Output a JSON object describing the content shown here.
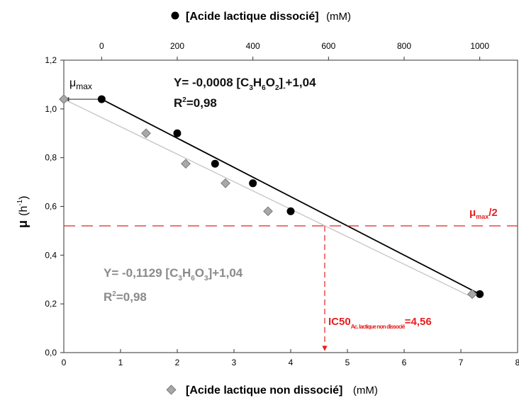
{
  "chart_data": {
    "type": "scatter",
    "x_bottom": {
      "label_prefix": "[Acide lactique non dissocié]",
      "unit": "(mM)",
      "range": [
        0,
        8
      ],
      "ticks": [
        0,
        1,
        2,
        3,
        4,
        5,
        6,
        7,
        8
      ],
      "tick_labels": [
        "0",
        "1",
        "2",
        "3",
        "4",
        "5",
        "6",
        "7",
        "8"
      ]
    },
    "x_top": {
      "label_prefix": "[Acide lactique dissocié]",
      "unit": "(mM)",
      "range": [
        -100,
        1100
      ],
      "ticks": [
        0,
        200,
        400,
        600,
        800,
        1000
      ],
      "tick_labels": [
        "0",
        "200",
        "400",
        "600",
        "800",
        "1000"
      ]
    },
    "y": {
      "label_main": "μ",
      "label_sub": "(h",
      "label_sup": "-1",
      "label_end": ")",
      "range": [
        0,
        1.2
      ],
      "ticks": [
        0,
        0.2,
        0.4,
        0.6,
        0.8,
        1.0,
        1.2
      ],
      "tick_labels": [
        "0,0",
        "0,2",
        "0,4",
        "0,6",
        "0,8",
        "1,0",
        "1,2"
      ]
    },
    "series": [
      {
        "marker": "circle",
        "color": "#000000",
        "x_axis": "top",
        "points": [
          {
            "x": 0,
            "y": 1.04
          },
          {
            "x": 200,
            "y": 0.9
          },
          {
            "x": 300,
            "y": 0.775
          },
          {
            "x": 400,
            "y": 0.695
          },
          {
            "x": 500,
            "y": 0.58
          },
          {
            "x": 1000,
            "y": 0.24
          }
        ],
        "fit": {
          "slope": -0.0008,
          "intercept": 1.04,
          "draw_from": 0,
          "draw_to": 1000,
          "color": "#000000"
        }
      },
      {
        "marker": "diamond",
        "color": "#a8a8a8",
        "x_axis": "bottom",
        "points": [
          {
            "x": 0,
            "y": 1.04
          },
          {
            "x": 1.45,
            "y": 0.9
          },
          {
            "x": 2.15,
            "y": 0.775
          },
          {
            "x": 2.85,
            "y": 0.695
          },
          {
            "x": 3.6,
            "y": 0.58
          },
          {
            "x": 7.2,
            "y": 0.24
          }
        ],
        "fit": {
          "slope": -0.1129,
          "intercept": 1.04,
          "draw_from": 0,
          "draw_to": 7.2,
          "color": "#c8c8c8"
        }
      }
    ],
    "annotations": {
      "eq_black": {
        "p1": "Y= -0,0008 [C",
        "s1": "3",
        "p2": "H",
        "s2": "6",
        "p3": "O",
        "s3": "2",
        "p4": "]",
        "sup": "-",
        "p5": "+1,04"
      },
      "r2_black": {
        "pre": "R",
        "sup": "2",
        "post": "=0,98"
      },
      "eq_grey": {
        "p1": "Y= -0,1129 [C",
        "s1": "3",
        "p2": "H",
        "s2": "6",
        "p3": "O",
        "s3": "3",
        "p4": "]+1,04"
      },
      "r2_grey": {
        "pre": "R",
        "sup": "2",
        "post": "=0,98"
      },
      "mumax": {
        "main": "μ",
        "sub": "max"
      },
      "half_label": {
        "main": "μ",
        "sub": "max",
        "post": "/2"
      },
      "ic50": {
        "pre": "IC50",
        "sub": "Ac. lactique non dissocié",
        "post": "=4,56"
      }
    },
    "half_line_y": 0.52,
    "ic50_x": 4.6,
    "colors": {
      "red": "#e42020",
      "grey_marker": "#a8a8a8",
      "grey_fit": "#c8c8c8"
    }
  }
}
